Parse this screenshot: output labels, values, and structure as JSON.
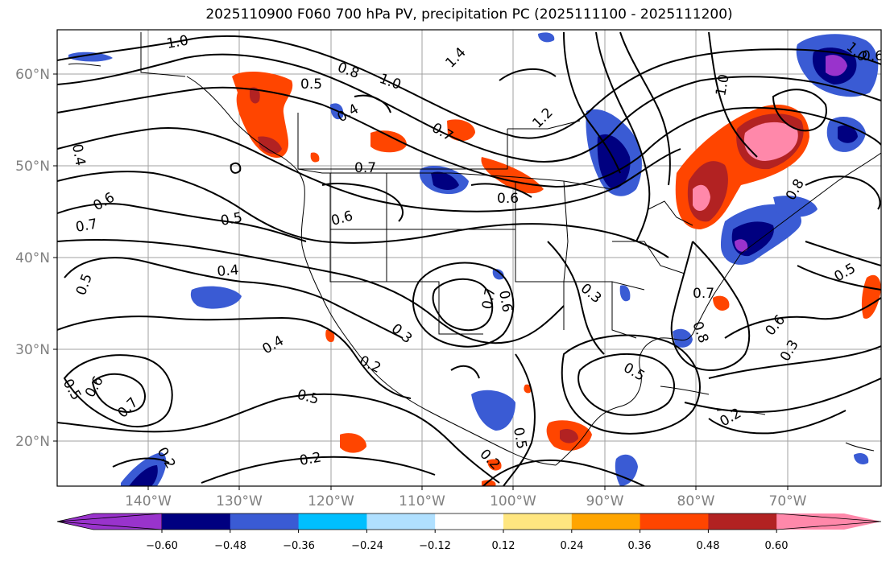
{
  "title": "2025110900 F060 700 hPa PV, precipitation PC (2025111100 - 2025111200)",
  "map": {
    "lat_labels": [
      "60°N",
      "50°N",
      "40°N",
      "30°N",
      "20°N"
    ],
    "lon_labels": [
      "140°W",
      "130°W",
      "120°W",
      "110°W",
      "100°W",
      "90°W",
      "80°W",
      "70°W"
    ],
    "axis_label_color": "#808080"
  },
  "contour_labels": [
    "1.0",
    "0.8",
    "1.0",
    "1.4",
    "0.5",
    "0.4",
    "0.4",
    "0.7",
    "0.7",
    "1.2",
    "1.0",
    "1.0",
    "0.6",
    "0.7",
    "0.6",
    "0.5",
    "0.6",
    "0.4",
    "0.5",
    "0.3",
    "0.7",
    "0.6",
    "0.5",
    "0.6",
    "0.7",
    "0.8",
    "0.5",
    "0.4",
    "0.3",
    "0.2",
    "0.5",
    "0.5",
    "0.5",
    "0.6",
    "0.7",
    "0.2",
    "0.2",
    "0.2",
    "0.3",
    "0.2",
    "0.8",
    "0.6"
  ],
  "colorbar": {
    "ticks": [
      "−0.60",
      "−0.48",
      "−0.36",
      "−0.24",
      "−0.12",
      "0.12",
      "0.24",
      "0.36",
      "0.48",
      "0.60"
    ],
    "colors": [
      "#9933cc",
      "#000080",
      "#3a5bd4",
      "#00bfff",
      "#b0e0ff",
      "#ffffff",
      "#ffe680",
      "#ffa500",
      "#ff4500",
      "#b22222",
      "#ff88aa",
      "#ff88aa"
    ]
  }
}
